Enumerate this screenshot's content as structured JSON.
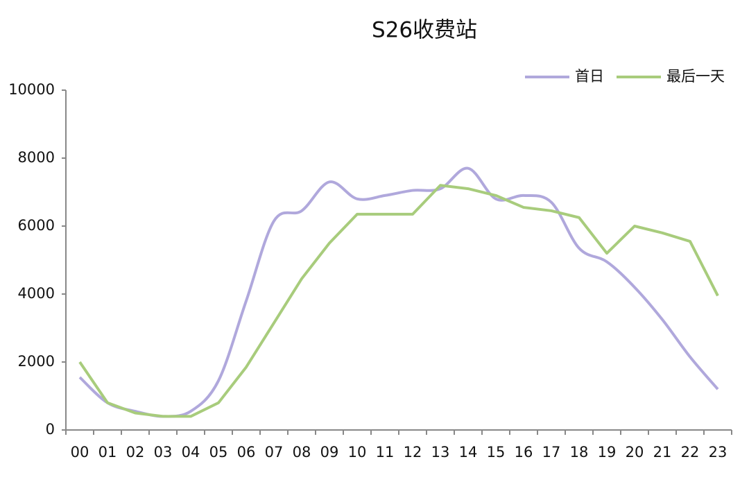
{
  "chart_data": {
    "type": "line",
    "title": "S26收费站",
    "categories": [
      "00",
      "01",
      "02",
      "03",
      "04",
      "05",
      "06",
      "07",
      "08",
      "09",
      "10",
      "11",
      "12",
      "13",
      "14",
      "15",
      "16",
      "17",
      "18",
      "19",
      "20",
      "21",
      "22",
      "23"
    ],
    "series": [
      {
        "name": "首日",
        "color": "#b0a8dc",
        "smooth": true,
        "values": [
          1550,
          800,
          550,
          400,
          550,
          1450,
          3800,
          6150,
          6450,
          7300,
          6800,
          6900,
          7050,
          7100,
          7700,
          6800,
          6900,
          6700,
          5350,
          4950,
          4200,
          3250,
          2150,
          1200
        ]
      },
      {
        "name": "最后一天",
        "color": "#a8cc7c",
        "smooth": false,
        "values": [
          2000,
          800,
          500,
          400,
          400,
          800,
          1850,
          3150,
          4450,
          5500,
          6350,
          6350,
          6350,
          7200,
          7100,
          6900,
          6550,
          6450,
          6250,
          5200,
          6000,
          5800,
          5550,
          3950
        ]
      }
    ],
    "ylim": [
      0,
      10000
    ],
    "yticks": [
      0,
      2000,
      4000,
      6000,
      8000,
      10000
    ],
    "grid": false,
    "legend": "top-right"
  }
}
